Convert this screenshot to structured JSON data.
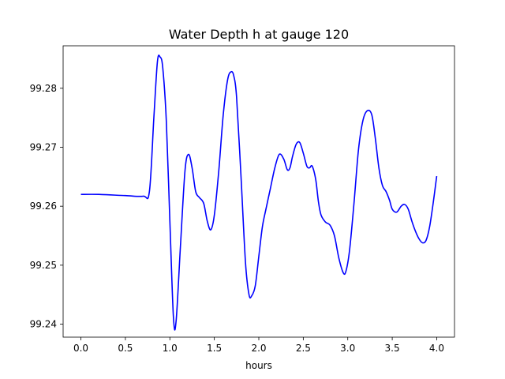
{
  "chart_data": {
    "type": "line",
    "title": "Water Depth h at gauge 120",
    "xlabel": "hours",
    "ylabel": "",
    "xlim": [
      -0.2,
      4.2
    ],
    "ylim": [
      99.2378,
      99.2872
    ],
    "x_ticks": [
      0.0,
      0.5,
      1.0,
      1.5,
      2.0,
      2.5,
      3.0,
      3.5,
      4.0
    ],
    "x_tick_labels": [
      "0.0",
      "0.5",
      "1.0",
      "1.5",
      "2.0",
      "2.5",
      "3.0",
      "3.5",
      "4.0"
    ],
    "y_ticks": [
      99.24,
      99.25,
      99.26,
      99.27,
      99.28
    ],
    "y_tick_labels": [
      "99.24",
      "99.25",
      "99.26",
      "99.27",
      "99.28"
    ],
    "grid": false,
    "legend": "none",
    "series": [
      {
        "color": "#0000ff",
        "x": [
          0.0,
          0.2,
          0.5,
          0.7,
          0.77,
          0.82,
          0.86,
          0.89,
          0.92,
          0.96,
          1.0,
          1.04,
          1.07,
          1.12,
          1.17,
          1.21,
          1.25,
          1.29,
          1.33,
          1.38,
          1.42,
          1.46,
          1.5,
          1.55,
          1.6,
          1.65,
          1.69,
          1.72,
          1.75,
          1.8,
          1.85,
          1.89,
          1.92,
          1.96,
          2.0,
          2.04,
          2.08,
          2.13,
          2.18,
          2.23,
          2.28,
          2.32,
          2.35,
          2.38,
          2.42,
          2.46,
          2.5,
          2.54,
          2.57,
          2.6,
          2.64,
          2.67,
          2.7,
          2.75,
          2.8,
          2.85,
          2.9,
          2.95,
          2.98,
          3.02,
          3.07,
          3.12,
          3.17,
          3.22,
          3.27,
          3.31,
          3.35,
          3.39,
          3.43,
          3.47,
          3.5,
          3.55,
          3.6,
          3.64,
          3.68,
          3.72,
          3.76,
          3.8,
          3.84,
          3.88,
          3.92,
          3.96,
          4.0
        ],
        "values": [
          99.262,
          99.262,
          99.2618,
          99.2617,
          99.2625,
          99.275,
          99.2845,
          99.2853,
          99.2835,
          99.2745,
          99.2575,
          99.2412,
          99.2405,
          99.2535,
          99.266,
          99.2688,
          99.2665,
          99.2625,
          99.2615,
          99.2605,
          99.2575,
          99.256,
          99.2585,
          99.266,
          99.2755,
          99.2815,
          99.2828,
          99.282,
          99.2785,
          99.265,
          99.2505,
          99.245,
          99.2448,
          99.2465,
          99.2515,
          99.2565,
          99.2595,
          99.263,
          99.2665,
          99.2688,
          99.268,
          99.2662,
          99.2665,
          99.2685,
          99.2705,
          99.2708,
          99.269,
          99.2668,
          99.2665,
          99.2668,
          99.2645,
          99.2608,
          99.2585,
          99.2573,
          99.2568,
          99.255,
          99.2512,
          99.2487,
          99.249,
          99.2525,
          99.2605,
          99.2695,
          99.2745,
          99.2762,
          99.2755,
          99.2715,
          99.2665,
          99.2635,
          99.2625,
          99.261,
          99.2595,
          99.259,
          99.26,
          99.2603,
          99.2595,
          99.2575,
          99.2558,
          99.2545,
          99.2538,
          99.2542,
          99.2565,
          99.2605,
          99.2651
        ]
      }
    ]
  }
}
